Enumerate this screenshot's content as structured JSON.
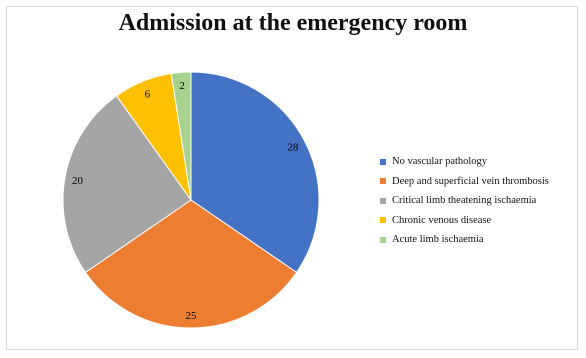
{
  "chart_data": {
    "type": "pie",
    "title": "Admission at the emergency room",
    "categories": [
      "No vascular pathology",
      "Deep and superficial vein thrombosis",
      "Critical limb theatening ischaemia",
      "Chronic venous disease",
      "Acute limb ischaemia"
    ],
    "values": [
      28,
      25,
      20,
      6,
      2
    ],
    "colors": [
      "#4472c4",
      "#ed7d31",
      "#a5a5a5",
      "#ffc000",
      "#a9d18e"
    ],
    "legend_position": "right"
  }
}
